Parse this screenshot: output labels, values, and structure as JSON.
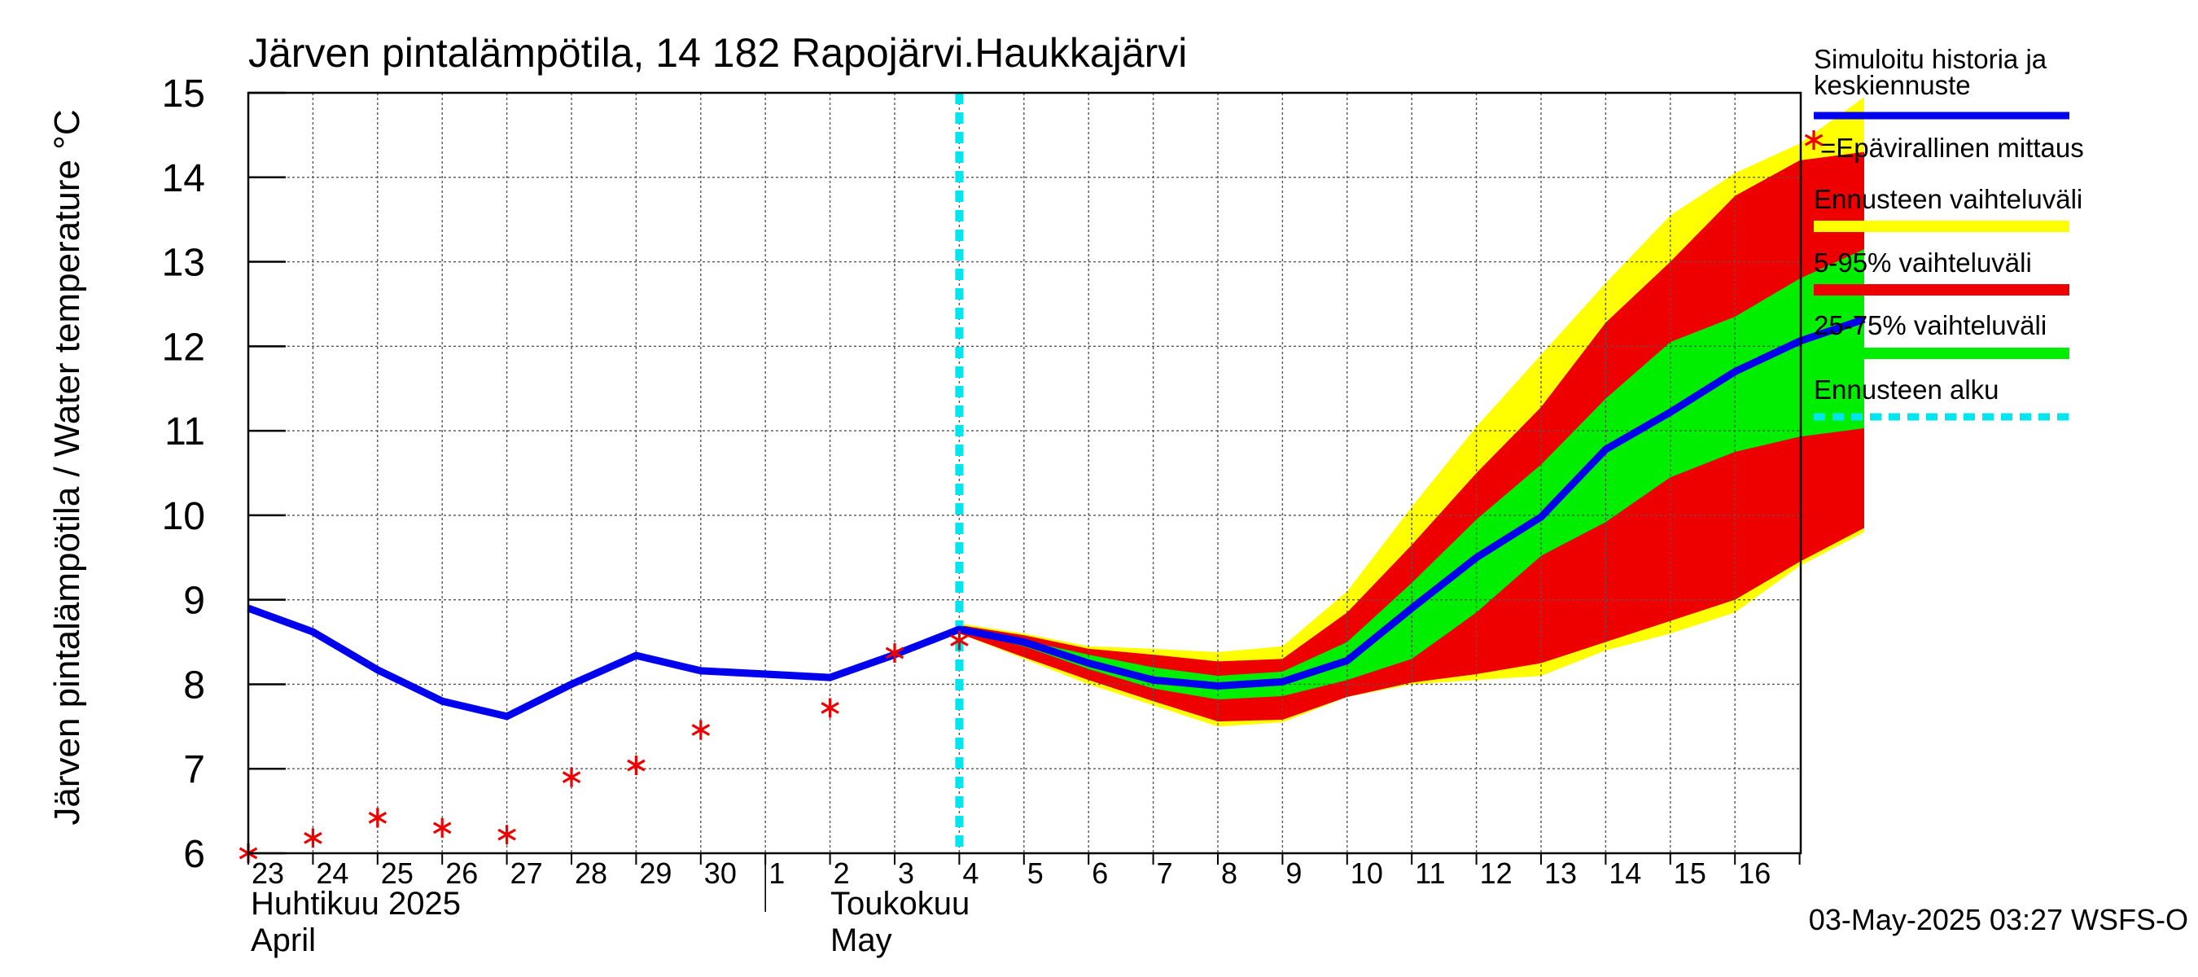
{
  "chart_data": {
    "type": "area",
    "title": "Järven pintalämpötila, 14 182 Rapojärvi.Haukkajärvi",
    "ylabel": "Järven pintalämpötila / Water temperature °C",
    "ylim": [
      6,
      15
    ],
    "yticks": [
      6,
      7,
      8,
      9,
      10,
      11,
      12,
      13,
      14,
      15
    ],
    "x_day_labels": [
      "23",
      "24",
      "25",
      "26",
      "27",
      "28",
      "29",
      "30",
      "1",
      "2",
      "3",
      "4",
      "5",
      "6",
      "7",
      "8",
      "9",
      "10",
      "11",
      "12",
      "13",
      "14",
      "15",
      "16"
    ],
    "month_labels": [
      {
        "fi": "Huhtikuu  2025",
        "en": "April"
      },
      {
        "fi": "Toukokuu",
        "en": "May"
      }
    ],
    "footer": "03-May-2025 03:27 WSFS-O",
    "forecast_start": "3 May",
    "grid": true,
    "legend_placement": "right",
    "legend": [
      {
        "label": "Simuloitu historia ja keskiennuste",
        "lines": [
          "Simuloitu historia ja",
          "keskiennuste"
        ],
        "kind": "line",
        "color": "#0000ee"
      },
      {
        "label": "=Epävirallinen mittaus",
        "lines": [
          "=Epävirallinen mittaus"
        ],
        "kind": "star",
        "color": "#ee0000"
      },
      {
        "label": "Ennusteen vaihteluväli",
        "lines": [
          "Ennusteen vaihteluväli"
        ],
        "kind": "band",
        "color": "#ffff00"
      },
      {
        "label": "5-95% vaihteluväli",
        "lines": [
          "5-95% vaihteluväli"
        ],
        "kind": "band",
        "color": "#ee0000"
      },
      {
        "label": "25-75% vaihteluväli",
        "lines": [
          "25-75% vaihteluväli"
        ],
        "kind": "band",
        "color": "#00ee00"
      },
      {
        "label": "Ennusteen alku",
        "lines": [
          "Ennusteen alku"
        ],
        "kind": "dashed",
        "color": "#00e5ee"
      }
    ],
    "series": [
      {
        "name": "Simuloitu historia ja keskiennuste",
        "color": "#0000ee",
        "x": [
          "23 Apr",
          "24 Apr",
          "25 Apr",
          "26 Apr",
          "27 Apr",
          "28 Apr",
          "29 Apr",
          "30 Apr",
          "1 May",
          "2 May",
          "3 May",
          "4 May",
          "5 May",
          "6 May",
          "7 May",
          "8 May",
          "9 May",
          "10 May",
          "11 May",
          "12 May",
          "13 May",
          "14 May",
          "15 May",
          "16 May",
          "17 May"
        ],
        "values": [
          8.9,
          8.62,
          8.17,
          7.8,
          7.62,
          8.0,
          8.34,
          8.16,
          8.08,
          8.35,
          8.65,
          8.5,
          8.25,
          8.05,
          7.98,
          8.03,
          8.28,
          8.9,
          9.5,
          9.98,
          10.78,
          11.22,
          11.7,
          12.06,
          12.32
        ]
      },
      {
        "name": "Epävirallinen mittaus",
        "color": "#ee0000",
        "x": [
          "23 Apr",
          "24 Apr",
          "25 Apr",
          "26 Apr",
          "27 Apr",
          "28 Apr",
          "29 Apr",
          "30 Apr",
          "1 May",
          "2 May",
          "3 May"
        ],
        "values": [
          6.0,
          6.18,
          6.42,
          6.3,
          6.22,
          6.9,
          7.04,
          7.46,
          7.72,
          8.37,
          8.52
        ]
      }
    ],
    "bands": [
      {
        "name": "Ennusteen vaihteluväli",
        "color": "#ffff00",
        "x": [
          "3 May",
          "4 May",
          "5 May",
          "6 May",
          "7 May",
          "8 May",
          "9 May",
          "10 May",
          "11 May",
          "12 May",
          "13 May",
          "14 May",
          "15 May",
          "16 May",
          "17 May"
        ],
        "upper": [
          8.72,
          8.6,
          8.45,
          8.42,
          8.38,
          8.45,
          9.1,
          10.1,
          11.05,
          11.9,
          12.75,
          13.55,
          14.05,
          14.4,
          14.95
        ],
        "lower": [
          8.6,
          8.3,
          8.0,
          7.75,
          7.5,
          7.55,
          7.85,
          8.0,
          8.05,
          8.1,
          8.4,
          8.6,
          8.85,
          9.4,
          9.8
        ]
      },
      {
        "name": "5-95% vaihteluväli",
        "color": "#ee0000",
        "x": [
          "3 May",
          "4 May",
          "5 May",
          "6 May",
          "7 May",
          "8 May",
          "9 May",
          "10 May",
          "11 May",
          "12 May",
          "13 May",
          "14 May",
          "15 May",
          "16 May",
          "17 May"
        ],
        "upper": [
          8.7,
          8.58,
          8.42,
          8.35,
          8.27,
          8.3,
          8.85,
          9.65,
          10.5,
          11.28,
          12.28,
          13.0,
          13.78,
          14.2,
          14.3
        ],
        "lower": [
          8.6,
          8.32,
          8.05,
          7.8,
          7.56,
          7.58,
          7.85,
          8.02,
          8.12,
          8.25,
          8.5,
          8.75,
          9.0,
          9.45,
          9.85
        ]
      },
      {
        "name": "25-75% vaihteluväli",
        "color": "#00ee00",
        "x": [
          "3 May",
          "4 May",
          "5 May",
          "6 May",
          "7 May",
          "8 May",
          "9 May",
          "10 May",
          "11 May",
          "12 May",
          "13 May",
          "14 May",
          "15 May",
          "16 May",
          "17 May"
        ],
        "upper": [
          8.66,
          8.52,
          8.35,
          8.2,
          8.1,
          8.15,
          8.5,
          9.2,
          9.95,
          10.6,
          11.38,
          12.05,
          12.35,
          12.8,
          13.15
        ],
        "lower": [
          8.62,
          8.45,
          8.18,
          7.95,
          7.82,
          7.86,
          8.05,
          8.3,
          8.85,
          9.52,
          9.92,
          10.45,
          10.75,
          10.93,
          11.03
        ]
      }
    ]
  }
}
